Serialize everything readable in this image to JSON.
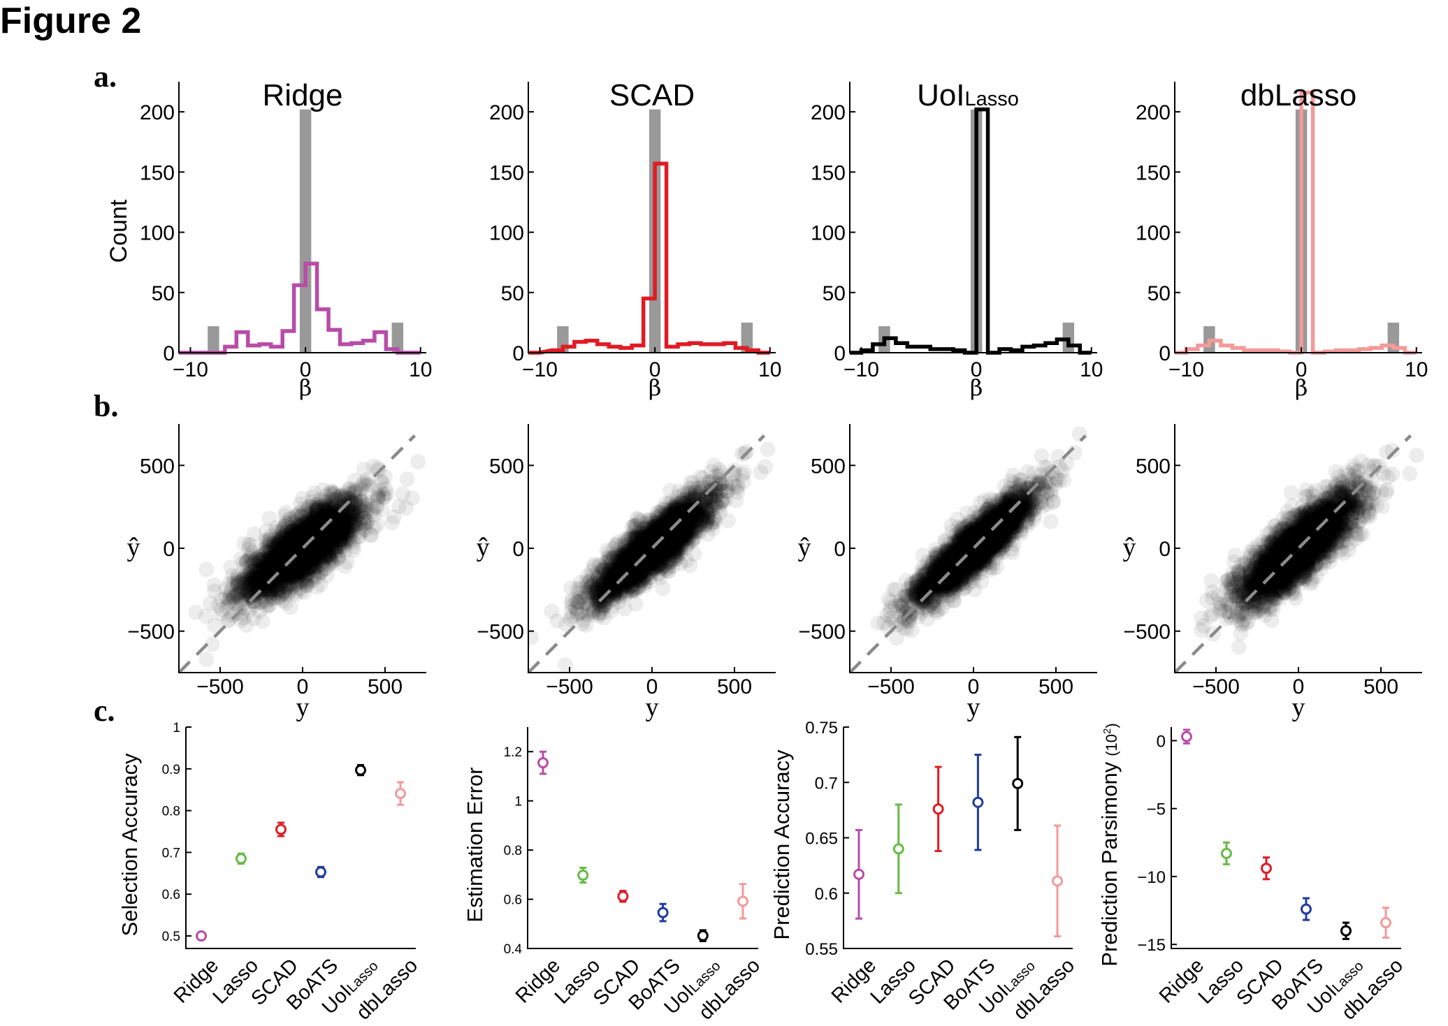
{
  "figure_title": "Figure 2",
  "panel_labels": [
    "a.",
    "b.",
    "c."
  ],
  "colors": {
    "Ridge": "#b84ca8",
    "Lasso": "#66bb44",
    "SCAD": "#e01b24",
    "BoATS": "#1f3b9e",
    "UoILasso": "#000000",
    "dbLasso": "#f39a9a",
    "true_bars": "#999999"
  },
  "chart_data": [
    {
      "type": "bar",
      "panel": "a",
      "title": "Ridge",
      "xlabel": "β",
      "ylabel": "Count",
      "xlim": [
        -10,
        10
      ],
      "ylim": [
        0,
        225
      ],
      "xticks": [
        -10,
        0,
        10
      ],
      "yticks": [
        0,
        50,
        100,
        150,
        200
      ],
      "true_bars": [
        {
          "x": -8,
          "count": 22
        },
        {
          "x": 0,
          "count": 202
        },
        {
          "x": 8,
          "count": 25
        }
      ],
      "series": [
        {
          "name": "Ridge",
          "color": "#b84ca8",
          "x": [
            -11,
            -9,
            -8,
            -7,
            -6,
            -5,
            -4,
            -3,
            -2,
            -1,
            0,
            1,
            2,
            3,
            4,
            5,
            6,
            7,
            8,
            9
          ],
          "values": [
            0,
            0,
            0,
            5,
            17,
            6,
            7,
            5,
            18,
            56,
            74,
            36,
            19,
            7,
            8,
            10,
            17,
            3,
            0,
            0
          ]
        }
      ]
    },
    {
      "type": "bar",
      "panel": "a",
      "title": "SCAD",
      "xlabel": "β",
      "ylabel": "",
      "xlim": [
        -10,
        10
      ],
      "ylim": [
        0,
        225
      ],
      "xticks": [
        -10,
        0,
        10
      ],
      "yticks": [
        0,
        50,
        100,
        150,
        200
      ],
      "true_bars": [
        {
          "x": -8,
          "count": 22
        },
        {
          "x": 0,
          "count": 202
        },
        {
          "x": 8,
          "count": 25
        }
      ],
      "series": [
        {
          "name": "SCAD",
          "color": "#e01b24",
          "x": [
            -11,
            -9,
            -8,
            -7,
            -6,
            -5,
            -4,
            -3,
            -2,
            -1,
            0,
            1,
            2,
            3,
            4,
            5,
            6,
            7,
            8,
            9
          ],
          "values": [
            0,
            2,
            5,
            9,
            10,
            7,
            5,
            4,
            6,
            45,
            157,
            5,
            7,
            8,
            7,
            7,
            8,
            4,
            2,
            0
          ]
        }
      ]
    },
    {
      "type": "bar",
      "panel": "a",
      "title": "UoI",
      "title_sub": "Lasso",
      "xlabel": "β",
      "ylabel": "",
      "xlim": [
        -10,
        10
      ],
      "ylim": [
        0,
        225
      ],
      "xticks": [
        -10,
        0,
        10
      ],
      "yticks": [
        0,
        50,
        100,
        150,
        200
      ],
      "true_bars": [
        {
          "x": -8,
          "count": 22
        },
        {
          "x": 0,
          "count": 202
        },
        {
          "x": 8,
          "count": 25
        }
      ],
      "series": [
        {
          "name": "UoILasso",
          "color": "#000000",
          "x": [
            -11,
            -10,
            -9,
            -8,
            -7,
            -6,
            -5,
            -4,
            -3,
            -2,
            -1,
            0,
            1,
            2,
            3,
            4,
            5,
            6,
            7,
            8,
            9
          ],
          "values": [
            0,
            2,
            7,
            12,
            8,
            5,
            5,
            3,
            3,
            2,
            0,
            202,
            0,
            3,
            2,
            5,
            6,
            8,
            11,
            6,
            0
          ]
        }
      ]
    },
    {
      "type": "bar",
      "panel": "a",
      "title": "dbLasso",
      "xlabel": "β",
      "ylabel": "",
      "xlim": [
        -10,
        10
      ],
      "ylim": [
        0,
        225
      ],
      "xticks": [
        -10,
        0,
        10
      ],
      "yticks": [
        0,
        50,
        100,
        150,
        200
      ],
      "true_bars": [
        {
          "x": -8,
          "count": 22
        },
        {
          "x": 0,
          "count": 202
        },
        {
          "x": 8,
          "count": 25
        }
      ],
      "series": [
        {
          "name": "dbLasso",
          "color": "#f39a9a",
          "x": [
            -11,
            -10,
            -9,
            -8,
            -7,
            -6,
            -5,
            -4,
            -3,
            -2,
            -1,
            0,
            1,
            2,
            3,
            4,
            5,
            6,
            7,
            8,
            9
          ],
          "values": [
            0,
            3,
            6,
            10,
            6,
            4,
            2,
            2,
            2,
            1,
            0,
            216,
            0,
            1,
            2,
            2,
            3,
            4,
            6,
            4,
            0
          ]
        }
      ]
    },
    {
      "type": "scatter",
      "panel": "b",
      "method": "Ridge",
      "xlabel": "y",
      "ylabel": "ŷ",
      "xlim": [
        -750,
        750
      ],
      "ylim": [
        -750,
        750
      ],
      "xticks": [
        -500,
        0,
        500
      ],
      "yticks": [
        -500,
        0,
        500
      ],
      "slope": 0.65,
      "spread": 95,
      "diagonal": true
    },
    {
      "type": "scatter",
      "panel": "b",
      "method": "SCAD",
      "xlabel": "y",
      "ylabel": "ŷ",
      "xlim": [
        -750,
        750
      ],
      "ylim": [
        -750,
        750
      ],
      "xticks": [
        -500,
        0,
        500
      ],
      "yticks": [
        -500,
        0,
        500
      ],
      "slope": 0.78,
      "spread": 80,
      "diagonal": true
    },
    {
      "type": "scatter",
      "panel": "b",
      "method": "UoILasso",
      "xlabel": "y",
      "ylabel": "ŷ",
      "xlim": [
        -750,
        750
      ],
      "ylim": [
        -750,
        750
      ],
      "xticks": [
        -500,
        0,
        500
      ],
      "yticks": [
        -500,
        0,
        500
      ],
      "slope": 0.85,
      "spread": 75,
      "diagonal": true
    },
    {
      "type": "scatter",
      "panel": "b",
      "method": "dbLasso",
      "xlabel": "y",
      "ylabel": "ŷ",
      "xlim": [
        -750,
        750
      ],
      "ylim": [
        -750,
        750
      ],
      "xticks": [
        -500,
        0,
        500
      ],
      "yticks": [
        -500,
        0,
        500
      ],
      "slope": 0.78,
      "spread": 100,
      "diagonal": true
    },
    {
      "type": "scatter",
      "panel": "c",
      "ylabel": "Selection Accuracy",
      "categories": [
        "Ridge",
        "Lasso",
        "SCAD",
        "BoATS",
        "UoI",
        "dbLasso"
      ],
      "category_subscripts": [
        "",
        "",
        "",
        "",
        "Lasso",
        ""
      ],
      "ylim": [
        0.47,
        1.0
      ],
      "yticks": [
        0.5,
        0.6,
        0.7,
        0.8,
        0.9,
        1
      ],
      "ytick_labels": [
        "0.5",
        "0.6",
        "0.7",
        "0.8",
        "0.9",
        "1"
      ],
      "values": [
        0.5,
        0.685,
        0.755,
        0.653,
        0.897,
        0.841
      ],
      "errors": [
        0.005,
        0.012,
        0.016,
        0.012,
        0.012,
        0.027
      ]
    },
    {
      "type": "scatter",
      "panel": "c",
      "ylabel": "Estimation Error",
      "categories": [
        "Ridge",
        "Lasso",
        "SCAD",
        "BoATS",
        "UoI",
        "dbLasso"
      ],
      "category_subscripts": [
        "",
        "",
        "",
        "",
        "Lasso",
        ""
      ],
      "ylim": [
        0.4,
        1.3
      ],
      "yticks": [
        0.4,
        0.6,
        0.8,
        1.0,
        1.2
      ],
      "ytick_labels": [
        "0.4",
        "0.6",
        "0.8",
        "1",
        "1.2"
      ],
      "values": [
        1.155,
        0.698,
        0.612,
        0.546,
        0.452,
        0.592
      ],
      "errors": [
        0.045,
        0.03,
        0.022,
        0.035,
        0.022,
        0.07
      ]
    },
    {
      "type": "scatter",
      "panel": "c",
      "ylabel": "Prediction Accuracy",
      "categories": [
        "Ridge",
        "Lasso",
        "SCAD",
        "BoATS",
        "UoI",
        "dbLasso"
      ],
      "category_subscripts": [
        "",
        "",
        "",
        "",
        "Lasso",
        ""
      ],
      "ylim": [
        0.55,
        0.75
      ],
      "yticks": [
        0.55,
        0.6,
        0.65,
        0.7,
        0.75
      ],
      "ytick_labels": [
        "0.55",
        "0.6",
        "0.65",
        "0.7",
        "0.75"
      ],
      "values": [
        0.617,
        0.64,
        0.676,
        0.682,
        0.699,
        0.611
      ],
      "errors": [
        0.04,
        0.04,
        0.038,
        0.043,
        0.042,
        0.05
      ]
    },
    {
      "type": "scatter",
      "panel": "c",
      "ylabel": "Prediction Parsimony",
      "ylabel_unit": "(10",
      "ylabel_unit_sup": "2",
      "ylabel_unit_close": ")",
      "categories": [
        "Ridge",
        "Lasso",
        "SCAD",
        "BoATS",
        "UoI",
        "dbLasso"
      ],
      "category_subscripts": [
        "",
        "",
        "",
        "",
        "Lasso",
        ""
      ],
      "ylim": [
        -15.3,
        1.0
      ],
      "yticks": [
        0,
        -5,
        -10,
        -15
      ],
      "ytick_labels": [
        "0",
        "−5",
        "−10",
        "−15"
      ],
      "values": [
        0.3,
        -8.3,
        -9.4,
        -12.4,
        -14.0,
        -13.4
      ],
      "errors": [
        0.5,
        0.8,
        0.8,
        0.8,
        0.6,
        1.1
      ]
    }
  ]
}
